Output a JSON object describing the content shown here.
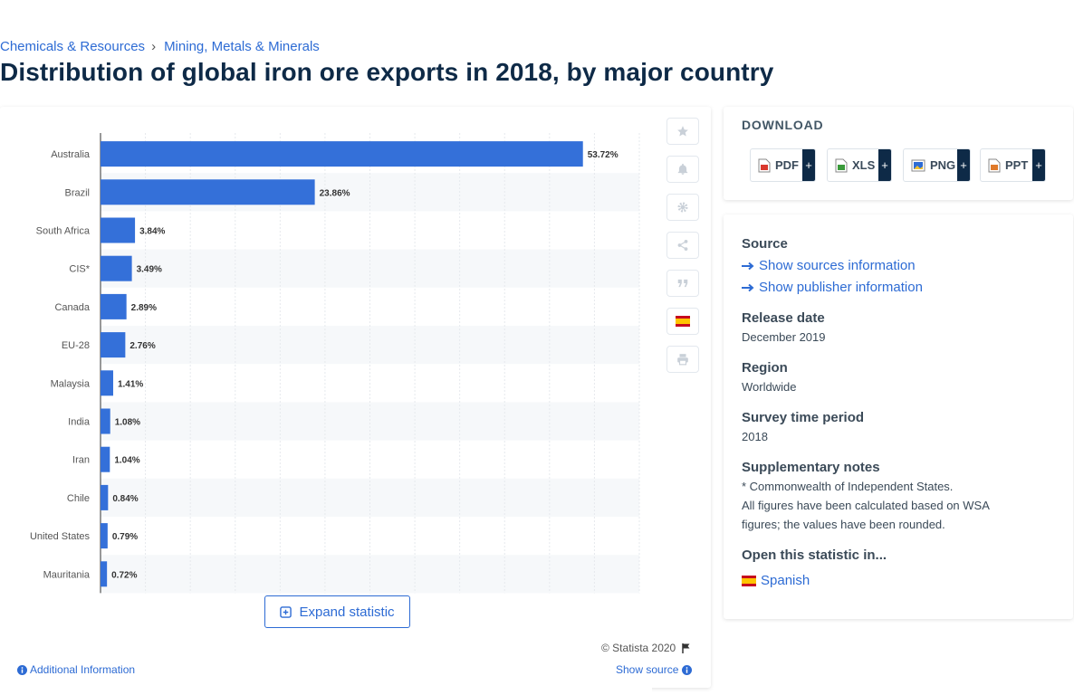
{
  "breadcrumb": {
    "items": [
      "Chemicals & Resources",
      "Mining, Metals & Minerals"
    ]
  },
  "page_title": "Distribution of global iron ore exports in 2018, by major country",
  "chart_data": {
    "type": "bar",
    "orientation": "horizontal",
    "categories": [
      "Australia",
      "Brazil",
      "South Africa",
      "CIS*",
      "Canada",
      "EU-28",
      "Malaysia",
      "India",
      "Iran",
      "Chile",
      "United States",
      "Mauritania"
    ],
    "values": [
      53.72,
      23.86,
      3.84,
      3.49,
      2.89,
      2.76,
      1.41,
      1.08,
      1.04,
      0.84,
      0.79,
      0.72
    ],
    "value_labels": [
      "53.72%",
      "23.86%",
      "3.84%",
      "3.49%",
      "2.89%",
      "2.76%",
      "1.41%",
      "1.08%",
      "1.04%",
      "0.84%",
      "0.79%",
      "0.72%"
    ],
    "xlim": [
      0,
      60
    ],
    "grid": true,
    "bar_color": "#3470d9"
  },
  "chart_footer": {
    "expand_label": "Expand statistic",
    "copyright": "© Statista 2020",
    "additional_info": "Additional Information",
    "show_source": "Show source"
  },
  "toolbar": {
    "icons": [
      "star-icon",
      "bell-icon",
      "gear-icon",
      "share-icon",
      "quote-icon",
      "spain-flag-icon",
      "print-icon"
    ]
  },
  "download": {
    "title": "DOWNLOAD",
    "buttons": [
      {
        "label": "PDF",
        "plus": "+",
        "color": "#d9382d"
      },
      {
        "label": "XLS",
        "plus": "+",
        "color": "#3a9a3a"
      },
      {
        "label": "PNG",
        "plus": "+",
        "color": "#2d6bd4"
      },
      {
        "label": "PPT",
        "plus": "+",
        "color": "#e07a2a"
      }
    ]
  },
  "info": {
    "source_heading": "Source",
    "show_sources": "Show sources information",
    "show_publisher": "Show publisher information",
    "release_heading": "Release date",
    "release_value": "December 2019",
    "region_heading": "Region",
    "region_value": "Worldwide",
    "period_heading": "Survey time period",
    "period_value": "2018",
    "notes_heading": "Supplementary notes",
    "notes_line1": "* Commonwealth of Independent States.",
    "notes_line2": "All figures have been calculated based on WSA",
    "notes_line3": "figures; the values have been rounded.",
    "open_heading": "Open this statistic in...",
    "open_spanish": "Spanish"
  },
  "colors": {
    "link": "#2d6bd4",
    "title": "#0e2a47",
    "bar": "#3470d9"
  }
}
